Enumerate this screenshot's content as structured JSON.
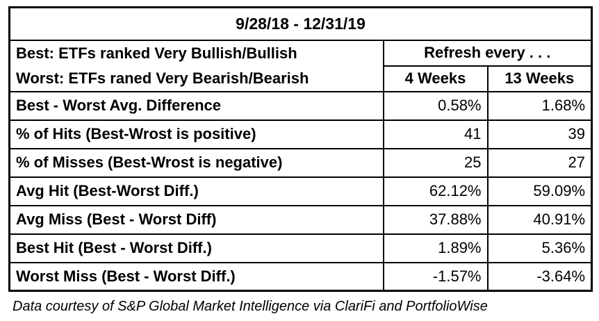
{
  "title": "9/28/18 - 12/31/19",
  "header": {
    "line1": "Best: ETFs ranked Very Bullish/Bullish",
    "line2": "Worst: ETFs raned Very Bearish/Bearish",
    "refresh_label": "Refresh every . . .",
    "col_4w": "4 Weeks",
    "col_13w": "13 Weeks"
  },
  "rows": [
    {
      "label": "Best - Worst Avg. Difference",
      "w4": "0.58%",
      "w13": "1.68%"
    },
    {
      "label": "% of Hits (Best-Wrost is positive)",
      "w4": "41",
      "w13": "39"
    },
    {
      "label": "% of Misses (Best-Wrost is negative)",
      "w4": "25",
      "w13": "27"
    },
    {
      "label": "Avg Hit (Best-Worst Diff.)",
      "w4": "62.12%",
      "w13": "59.09%"
    },
    {
      "label": "Avg Miss (Best - Worst Diff)",
      "w4": "37.88%",
      "w13": "40.91%"
    },
    {
      "label": "Best Hit (Best - Worst Diff.)",
      "w4": "1.89%",
      "w13": "5.36%"
    },
    {
      "label": "Worst Miss (Best - Worst Diff.)",
      "w4": "-1.57%",
      "w13": "-3.64%"
    }
  ],
  "footnote": "Data courtesy of S&P Global Market Intelligence via ClariFi and PortfolioWise"
}
